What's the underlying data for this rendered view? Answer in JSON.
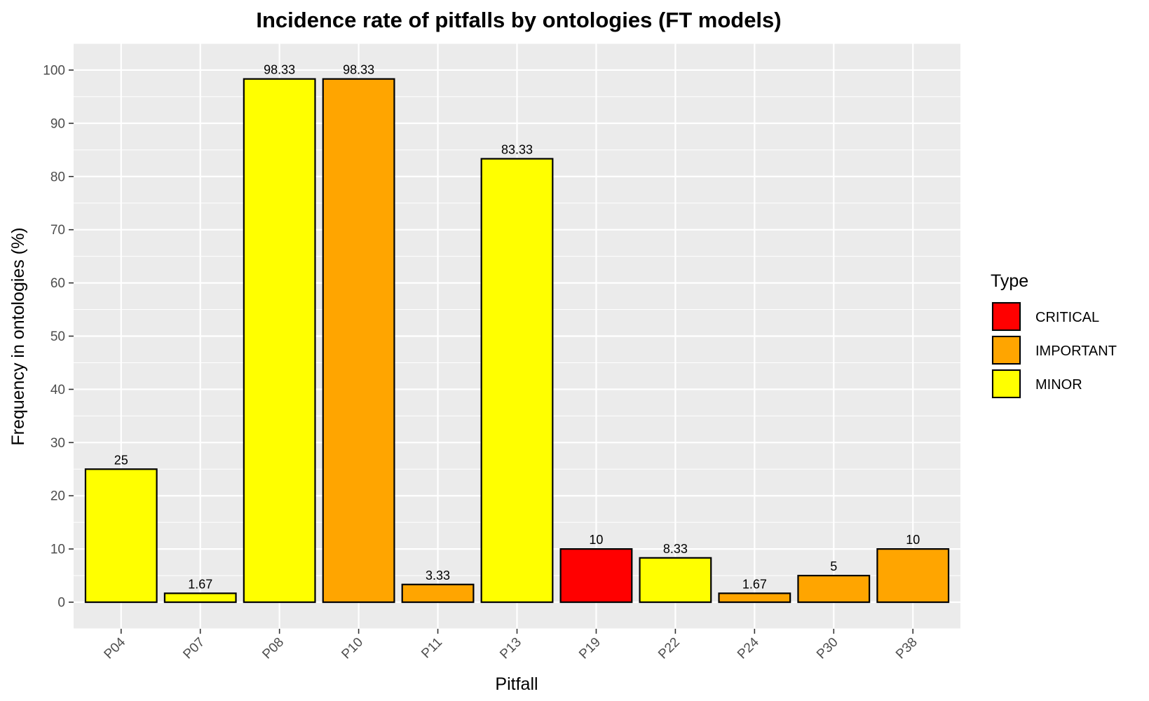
{
  "chart_data": {
    "type": "bar",
    "title": "Incidence rate of pitfalls by ontologies (FT models)",
    "xlabel": "Pitfall",
    "ylabel": "Frequency in ontologies (%)",
    "ylim": [
      -5,
      105
    ],
    "yticks": [
      0,
      10,
      20,
      30,
      40,
      50,
      60,
      70,
      80,
      90,
      100
    ],
    "categories": [
      "P04",
      "P07",
      "P08",
      "P10",
      "P11",
      "P13",
      "P19",
      "P22",
      "P24",
      "P30",
      "P38"
    ],
    "values": [
      25,
      1.67,
      98.33,
      98.33,
      3.33,
      83.33,
      10,
      8.33,
      1.67,
      5,
      10
    ],
    "value_labels": [
      "25",
      "1.67",
      "98.33",
      "98.33",
      "3.33",
      "83.33",
      "10",
      "8.33",
      "1.67",
      "5",
      "10"
    ],
    "types": [
      "MINOR",
      "MINOR",
      "MINOR",
      "IMPORTANT",
      "IMPORTANT",
      "MINOR",
      "CRITICAL",
      "MINOR",
      "IMPORTANT",
      "IMPORTANT",
      "IMPORTANT"
    ],
    "grid": true,
    "legend": {
      "title": "Type",
      "placement": "right",
      "entries": [
        {
          "label": "CRITICAL",
          "color": "#ff0000"
        },
        {
          "label": "IMPORTANT",
          "color": "#ffa500"
        },
        {
          "label": "MINOR",
          "color": "#ffff00"
        }
      ]
    }
  }
}
